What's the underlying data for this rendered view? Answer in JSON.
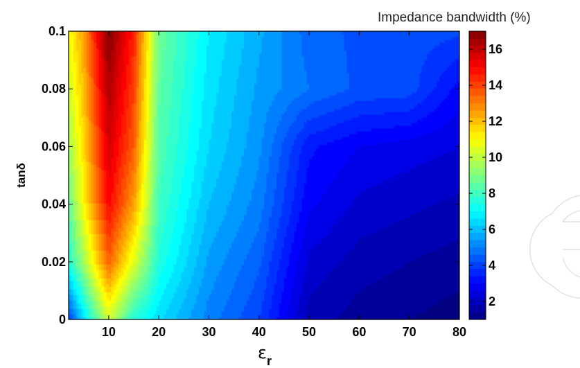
{
  "chart_data": {
    "type": "heatmap",
    "subtype": "filled-contour",
    "xlabel": "ε",
    "xlabel_subscript": "r",
    "ylabel": "tanδ",
    "colorbar_title": "Impedance bandwidth (%)",
    "colormap": "jet",
    "xlim": [
      2,
      80
    ],
    "ylim": [
      0,
      0.1
    ],
    "color_range": [
      1,
      17
    ],
    "x_ticks": [
      10,
      20,
      30,
      40,
      50,
      60,
      70,
      80
    ],
    "x_tick_labels": [
      "10",
      "20",
      "30",
      "40",
      "50",
      "60",
      "70",
      "80"
    ],
    "y_ticks": [
      0,
      0.02,
      0.04,
      0.06,
      0.08,
      0.1
    ],
    "y_tick_labels": [
      "0",
      "0.02",
      "0.04",
      "0.06",
      "0.08",
      "0.1"
    ],
    "colorbar_ticks": [
      2,
      4,
      6,
      8,
      10,
      12,
      14,
      16
    ],
    "colorbar_tick_labels": [
      "2",
      "4",
      "6",
      "8",
      "10",
      "12",
      "14",
      "16"
    ],
    "x": [
      2,
      5,
      10,
      15,
      20,
      30,
      40,
      50,
      60,
      70,
      80
    ],
    "y": [
      0,
      0.02,
      0.04,
      0.06,
      0.08,
      0.1
    ],
    "z": [
      [
        3.8,
        6.5,
        10.2,
        7.5,
        6.5,
        5.0,
        4.0,
        1.8,
        1.4,
        1.2,
        1.0
      ],
      [
        7.5,
        9.5,
        13.5,
        10.5,
        7.5,
        5.5,
        4.5,
        2.3,
        1.8,
        1.6,
        1.4
      ],
      [
        8.5,
        11.0,
        15.0,
        12.5,
        8.0,
        6.0,
        5.0,
        2.9,
        2.3,
        2.1,
        1.9
      ],
      [
        9.5,
        11.5,
        15.7,
        13.5,
        8.3,
        6.4,
        5.3,
        3.3,
        2.8,
        2.6,
        2.4
      ],
      [
        10.2,
        12.0,
        16.3,
        14.0,
        8.5,
        6.6,
        5.5,
        4.8,
        4.3,
        4.2,
        3.0
      ],
      [
        10.8,
        12.5,
        17.0,
        14.5,
        8.7,
        6.8,
        5.7,
        4.6,
        4.3,
        4.2,
        4.1
      ]
    ]
  }
}
